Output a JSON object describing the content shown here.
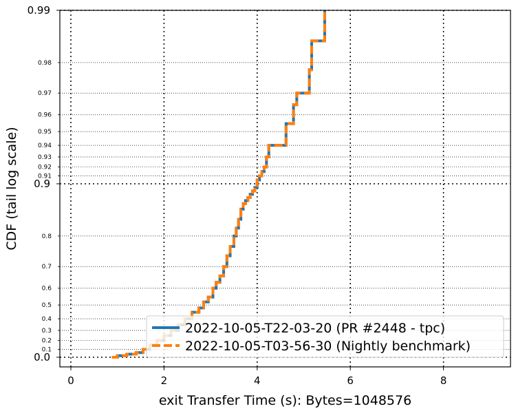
{
  "chart_data": {
    "type": "line",
    "title": "",
    "xlabel": "exit Transfer Time (s): Bytes=1048576",
    "ylabel": "CDF (tail log scale)",
    "xlim": [
      -0.35,
      9.45
    ],
    "x_ticks": [
      0,
      2,
      4,
      6,
      8
    ],
    "x_tick_labels": [
      "0",
      "2",
      "4",
      "6",
      "8"
    ],
    "y_scale": "tail-log",
    "y_major_ticks": [
      0.0,
      0.9,
      0.99
    ],
    "y_major_labels": [
      "0.0",
      "0.9",
      "0.99"
    ],
    "y_minor_ticks": [
      0.1,
      0.2,
      0.3,
      0.4,
      0.5,
      0.6,
      0.7,
      0.8,
      0.91,
      0.92,
      0.93,
      0.94,
      0.95,
      0.96,
      0.97,
      0.98
    ],
    "y_minor_labels": [
      "0.1",
      "0.2",
      "0.3",
      "0.4",
      "0.5",
      "0.6",
      "0.7",
      "0.8",
      "0.91",
      "0.92",
      "0.93",
      "0.94",
      "0.95",
      "0.96",
      "0.97",
      "0.98"
    ],
    "grid": true,
    "legend_position": "lower-right",
    "series": [
      {
        "name": "2022-10-05-T22-03-20 (PR #2448 - tpc)",
        "color": "#1f77b4",
        "style": "solid",
        "x": [
          0.88,
          1.0,
          1.2,
          1.4,
          1.55,
          1.7,
          1.85,
          2.0,
          2.15,
          2.3,
          2.45,
          2.6,
          2.75,
          2.85,
          2.95,
          3.05,
          3.12,
          3.2,
          3.28,
          3.35,
          3.42,
          3.5,
          3.55,
          3.6,
          3.65,
          3.7,
          3.75,
          3.8,
          3.85,
          3.9,
          3.95,
          4.0,
          4.05,
          4.1,
          4.15,
          4.2,
          4.25,
          4.35,
          4.45,
          4.55,
          4.62,
          4.7,
          4.78,
          4.85,
          4.95,
          5.05,
          5.12,
          5.17,
          5.22,
          5.3,
          5.38,
          5.45
        ],
        "y": [
          0.0,
          0.02,
          0.04,
          0.06,
          0.1,
          0.15,
          0.2,
          0.25,
          0.3,
          0.35,
          0.4,
          0.45,
          0.48,
          0.52,
          0.55,
          0.6,
          0.63,
          0.66,
          0.7,
          0.74,
          0.77,
          0.8,
          0.82,
          0.84,
          0.86,
          0.87,
          0.875,
          0.88,
          0.885,
          0.89,
          0.895,
          0.905,
          0.91,
          0.915,
          0.92,
          0.93,
          0.94,
          0.94,
          0.94,
          0.94,
          0.955,
          0.955,
          0.965,
          0.97,
          0.97,
          0.97,
          0.978,
          0.985,
          0.985,
          0.985,
          0.985,
          0.99
        ]
      },
      {
        "name": "2022-10-05-T03-56-30 (Nightly benchmark)",
        "color": "#ff7f0e",
        "style": "dashed",
        "x": [
          0.88,
          1.0,
          1.2,
          1.4,
          1.55,
          1.7,
          1.85,
          2.0,
          2.15,
          2.3,
          2.45,
          2.6,
          2.75,
          2.85,
          2.95,
          3.05,
          3.12,
          3.2,
          3.28,
          3.35,
          3.42,
          3.5,
          3.55,
          3.6,
          3.65,
          3.7,
          3.75,
          3.8,
          3.85,
          3.9,
          3.95,
          4.0,
          4.05,
          4.1,
          4.15,
          4.2,
          4.25,
          4.35,
          4.45,
          4.55,
          4.62,
          4.7,
          4.78,
          4.85,
          4.95,
          5.05,
          5.12,
          5.17,
          5.22,
          5.3,
          5.38,
          5.45
        ],
        "y": [
          0.0,
          0.02,
          0.04,
          0.06,
          0.1,
          0.15,
          0.2,
          0.25,
          0.3,
          0.35,
          0.4,
          0.45,
          0.48,
          0.52,
          0.55,
          0.6,
          0.63,
          0.66,
          0.7,
          0.74,
          0.77,
          0.8,
          0.82,
          0.84,
          0.86,
          0.87,
          0.875,
          0.88,
          0.885,
          0.89,
          0.895,
          0.905,
          0.91,
          0.915,
          0.92,
          0.93,
          0.94,
          0.94,
          0.94,
          0.94,
          0.955,
          0.955,
          0.965,
          0.97,
          0.97,
          0.97,
          0.978,
          0.985,
          0.985,
          0.985,
          0.985,
          0.99
        ]
      }
    ]
  }
}
